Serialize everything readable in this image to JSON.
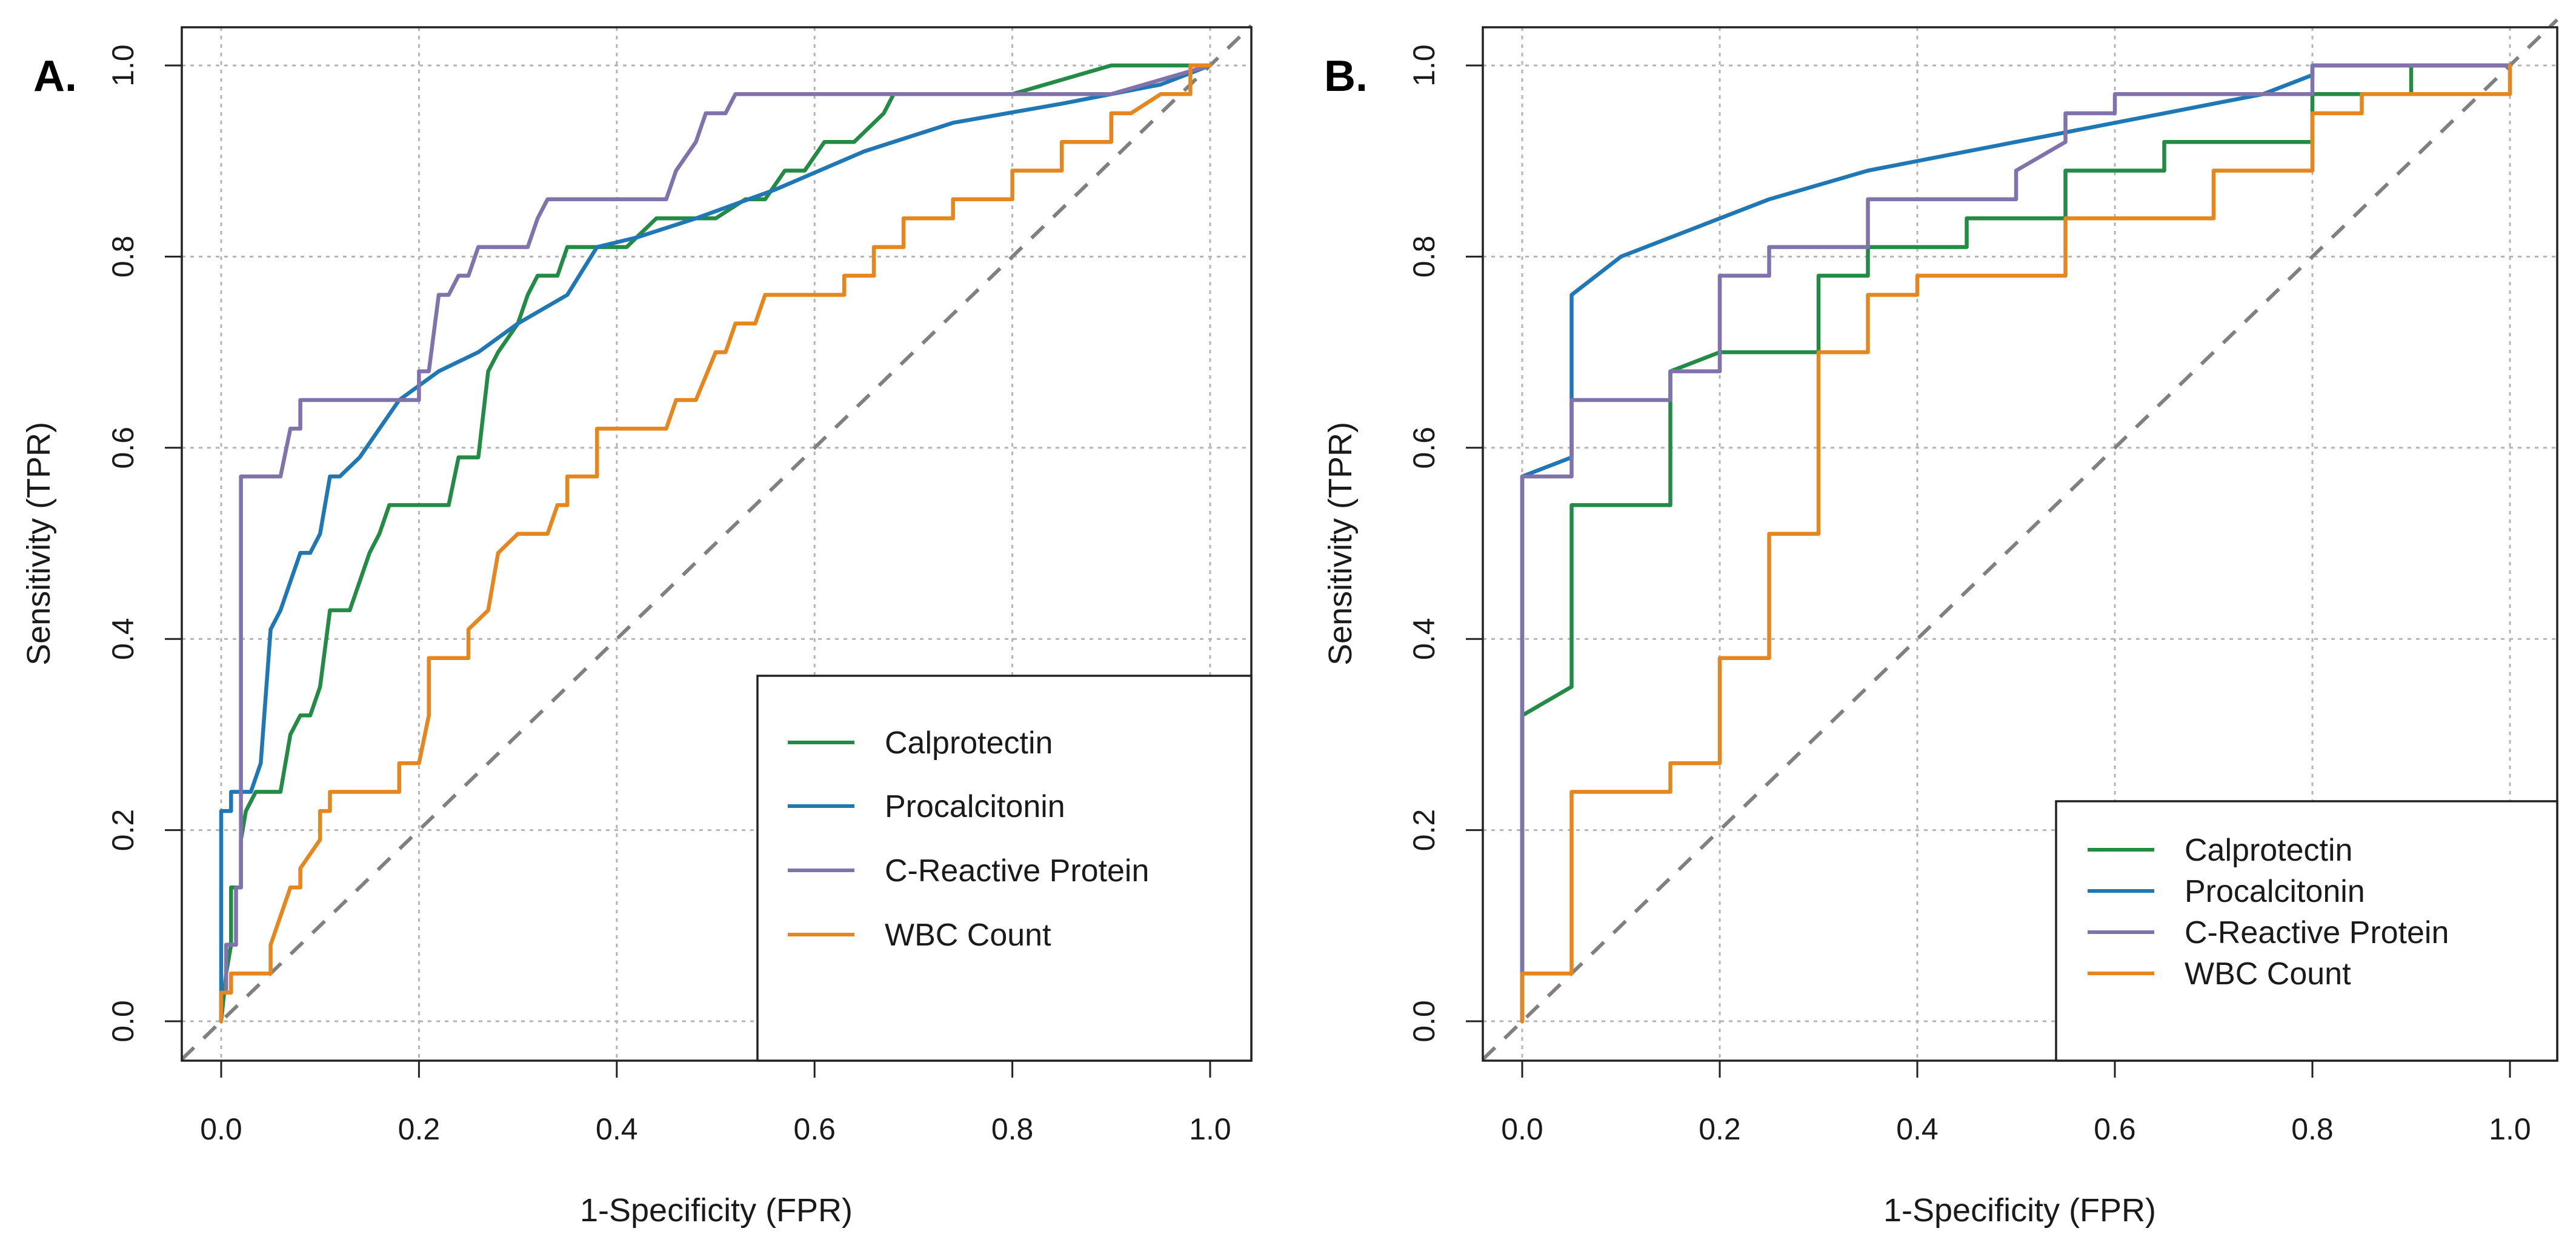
{
  "colors": {
    "calprotectin": "#238b45",
    "procalcitonin": "#1f78b4",
    "crp": "#8073ac",
    "wbc": "#e6861f",
    "diagonal": "#808080",
    "grid": "#b5b5b5"
  },
  "chart_data": [
    {
      "panel_label": "A.",
      "type": "line",
      "title": "",
      "xlabel": "1-Specificity (FPR)",
      "ylabel": "Sensitivity (TPR)",
      "xlim": [
        0,
        1
      ],
      "ylim": [
        0,
        1
      ],
      "xticks": [
        "0.0",
        "0.2",
        "0.4",
        "0.6",
        "0.8",
        "1.0"
      ],
      "yticks": [
        "0.0",
        "0.2",
        "0.4",
        "0.6",
        "0.8",
        "1.0"
      ],
      "grid": true,
      "reference_line": "diagonal",
      "legend_position": "bottom-right",
      "series": [
        {
          "name": "Calprotectin",
          "color_key": "calprotectin",
          "x": [
            0,
            0.005,
            0.01,
            0.01,
            0.02,
            0.02,
            0.025,
            0.035,
            0.045,
            0.06,
            0.07,
            0.08,
            0.09,
            0.1,
            0.11,
            0.13,
            0.15,
            0.16,
            0.17,
            0.18,
            0.2,
            0.23,
            0.24,
            0.26,
            0.27,
            0.28,
            0.3,
            0.31,
            0.32,
            0.34,
            0.35,
            0.37,
            0.39,
            0.41,
            0.44,
            0.46,
            0.5,
            0.53,
            0.55,
            0.57,
            0.59,
            0.61,
            0.64,
            0.67,
            0.68,
            0.7,
            0.8,
            0.9,
            0.95,
            1.0
          ],
          "y": [
            0,
            0.05,
            0.08,
            0.14,
            0.14,
            0.19,
            0.22,
            0.24,
            0.24,
            0.24,
            0.3,
            0.32,
            0.32,
            0.35,
            0.43,
            0.43,
            0.49,
            0.51,
            0.54,
            0.54,
            0.54,
            0.54,
            0.59,
            0.59,
            0.68,
            0.7,
            0.73,
            0.76,
            0.78,
            0.78,
            0.81,
            0.81,
            0.81,
            0.81,
            0.84,
            0.84,
            0.84,
            0.86,
            0.86,
            0.89,
            0.89,
            0.92,
            0.92,
            0.95,
            0.97,
            0.97,
            0.97,
            1.0,
            1.0,
            1.0
          ]
        },
        {
          "name": "Procalcitonin",
          "color_key": "procalcitonin",
          "x": [
            0,
            0.0,
            0.01,
            0.01,
            0.03,
            0.04,
            0.05,
            0.06,
            0.07,
            0.08,
            0.09,
            0.1,
            0.11,
            0.12,
            0.14,
            0.16,
            0.18,
            0.22,
            0.26,
            0.3,
            0.35,
            0.38,
            0.42,
            0.48,
            0.56,
            0.65,
            0.74,
            0.85,
            0.95,
            1.0
          ],
          "y": [
            0,
            0.22,
            0.22,
            0.24,
            0.24,
            0.27,
            0.41,
            0.43,
            0.46,
            0.49,
            0.49,
            0.51,
            0.57,
            0.57,
            0.59,
            0.62,
            0.65,
            0.68,
            0.7,
            0.73,
            0.76,
            0.81,
            0.82,
            0.84,
            0.87,
            0.91,
            0.94,
            0.96,
            0.98,
            1.0
          ]
        },
        {
          "name": "C-Reactive Protein",
          "color_key": "crp",
          "x": [
            0,
            0.0,
            0.005,
            0.005,
            0.015,
            0.015,
            0.02,
            0.02,
            0.06,
            0.07,
            0.08,
            0.08,
            0.12,
            0.19,
            0.2,
            0.2,
            0.21,
            0.22,
            0.23,
            0.24,
            0.25,
            0.26,
            0.27,
            0.31,
            0.32,
            0.33,
            0.35,
            0.45,
            0.46,
            0.48,
            0.49,
            0.5,
            0.51,
            0.52,
            0.55,
            0.65,
            0.7,
            0.9,
            1.0
          ],
          "y": [
            0,
            0.03,
            0.03,
            0.08,
            0.08,
            0.14,
            0.14,
            0.57,
            0.57,
            0.62,
            0.62,
            0.65,
            0.65,
            0.65,
            0.65,
            0.68,
            0.68,
            0.76,
            0.76,
            0.78,
            0.78,
            0.81,
            0.81,
            0.81,
            0.84,
            0.86,
            0.86,
            0.86,
            0.89,
            0.92,
            0.95,
            0.95,
            0.95,
            0.97,
            0.97,
            0.97,
            0.97,
            0.97,
            1.0
          ]
        },
        {
          "name": "WBC Count",
          "color_key": "wbc",
          "x": [
            0,
            0.0,
            0.01,
            0.01,
            0.05,
            0.05,
            0.06,
            0.07,
            0.08,
            0.08,
            0.1,
            0.1,
            0.11,
            0.11,
            0.13,
            0.18,
            0.18,
            0.2,
            0.21,
            0.21,
            0.25,
            0.25,
            0.27,
            0.28,
            0.3,
            0.33,
            0.34,
            0.35,
            0.35,
            0.38,
            0.38,
            0.45,
            0.46,
            0.48,
            0.5,
            0.51,
            0.52,
            0.54,
            0.55,
            0.56,
            0.58,
            0.59,
            0.6,
            0.63,
            0.63,
            0.66,
            0.66,
            0.69,
            0.69,
            0.74,
            0.74,
            0.8,
            0.8,
            0.85,
            0.85,
            0.88,
            0.9,
            0.9,
            0.92,
            0.95,
            0.98,
            0.98,
            1.0
          ],
          "y": [
            0,
            0.03,
            0.03,
            0.05,
            0.05,
            0.08,
            0.11,
            0.14,
            0.14,
            0.16,
            0.19,
            0.22,
            0.22,
            0.24,
            0.24,
            0.24,
            0.27,
            0.27,
            0.32,
            0.38,
            0.38,
            0.41,
            0.43,
            0.49,
            0.51,
            0.51,
            0.54,
            0.54,
            0.57,
            0.57,
            0.62,
            0.62,
            0.65,
            0.65,
            0.7,
            0.7,
            0.73,
            0.73,
            0.76,
            0.76,
            0.76,
            0.76,
            0.76,
            0.76,
            0.78,
            0.78,
            0.81,
            0.81,
            0.84,
            0.84,
            0.86,
            0.86,
            0.89,
            0.89,
            0.92,
            0.92,
            0.92,
            0.95,
            0.95,
            0.97,
            0.97,
            1.0,
            1.0
          ]
        }
      ]
    },
    {
      "panel_label": "B.",
      "type": "line",
      "title": "",
      "xlabel": "1-Specificity (FPR)",
      "ylabel": "Sensitivity (TPR)",
      "xlim": [
        0,
        1
      ],
      "ylim": [
        0,
        1
      ],
      "xticks": [
        "0.0",
        "0.2",
        "0.4",
        "0.6",
        "0.8",
        "1.0"
      ],
      "yticks": [
        "0.0",
        "0.2",
        "0.4",
        "0.6",
        "0.8",
        "1.0"
      ],
      "grid": true,
      "reference_line": "diagonal",
      "legend_position": "bottom-right",
      "series": [
        {
          "name": "Calprotectin",
          "color_key": "calprotectin",
          "x": [
            0,
            0.0,
            0.05,
            0.05,
            0.15,
            0.15,
            0.2,
            0.2,
            0.3,
            0.3,
            0.35,
            0.35,
            0.45,
            0.45,
            0.55,
            0.55,
            0.65,
            0.65,
            0.8,
            0.8,
            0.9,
            0.9,
            1.0
          ],
          "y": [
            0,
            0.32,
            0.35,
            0.54,
            0.54,
            0.68,
            0.7,
            0.7,
            0.7,
            0.78,
            0.78,
            0.81,
            0.81,
            0.84,
            0.84,
            0.89,
            0.89,
            0.92,
            0.92,
            0.97,
            0.97,
            1.0,
            1.0
          ]
        },
        {
          "name": "Procalcitonin",
          "color_key": "procalcitonin",
          "x": [
            0,
            0.0,
            0.05,
            0.05,
            0.1,
            0.2,
            0.25,
            0.35,
            0.45,
            0.55,
            0.65,
            0.75,
            0.8,
            0.8,
            1.0
          ],
          "y": [
            0,
            0.57,
            0.59,
            0.76,
            0.8,
            0.84,
            0.86,
            0.89,
            0.91,
            0.93,
            0.95,
            0.97,
            0.99,
            1.0,
            1.0
          ]
        },
        {
          "name": "C-Reactive Protein",
          "color_key": "crp",
          "x": [
            0,
            0.0,
            0.05,
            0.05,
            0.15,
            0.15,
            0.2,
            0.2,
            0.25,
            0.25,
            0.35,
            0.35,
            0.5,
            0.5,
            0.55,
            0.55,
            0.6,
            0.6,
            0.8,
            0.8,
            1.0
          ],
          "y": [
            0,
            0.57,
            0.57,
            0.65,
            0.65,
            0.68,
            0.68,
            0.78,
            0.78,
            0.81,
            0.81,
            0.86,
            0.86,
            0.89,
            0.92,
            0.95,
            0.95,
            0.97,
            0.97,
            1.0,
            1.0
          ]
        },
        {
          "name": "WBC Count",
          "color_key": "wbc",
          "x": [
            0,
            0.0,
            0.05,
            0.05,
            0.15,
            0.15,
            0.2,
            0.2,
            0.25,
            0.25,
            0.3,
            0.3,
            0.35,
            0.35,
            0.4,
            0.4,
            0.55,
            0.55,
            0.7,
            0.7,
            0.8,
            0.8,
            0.85,
            0.85,
            1.0,
            1.0
          ],
          "y": [
            0,
            0.05,
            0.05,
            0.24,
            0.24,
            0.27,
            0.27,
            0.38,
            0.38,
            0.51,
            0.51,
            0.7,
            0.7,
            0.76,
            0.76,
            0.78,
            0.78,
            0.84,
            0.84,
            0.89,
            0.89,
            0.95,
            0.95,
            0.97,
            0.97,
            1.0
          ]
        }
      ]
    }
  ]
}
